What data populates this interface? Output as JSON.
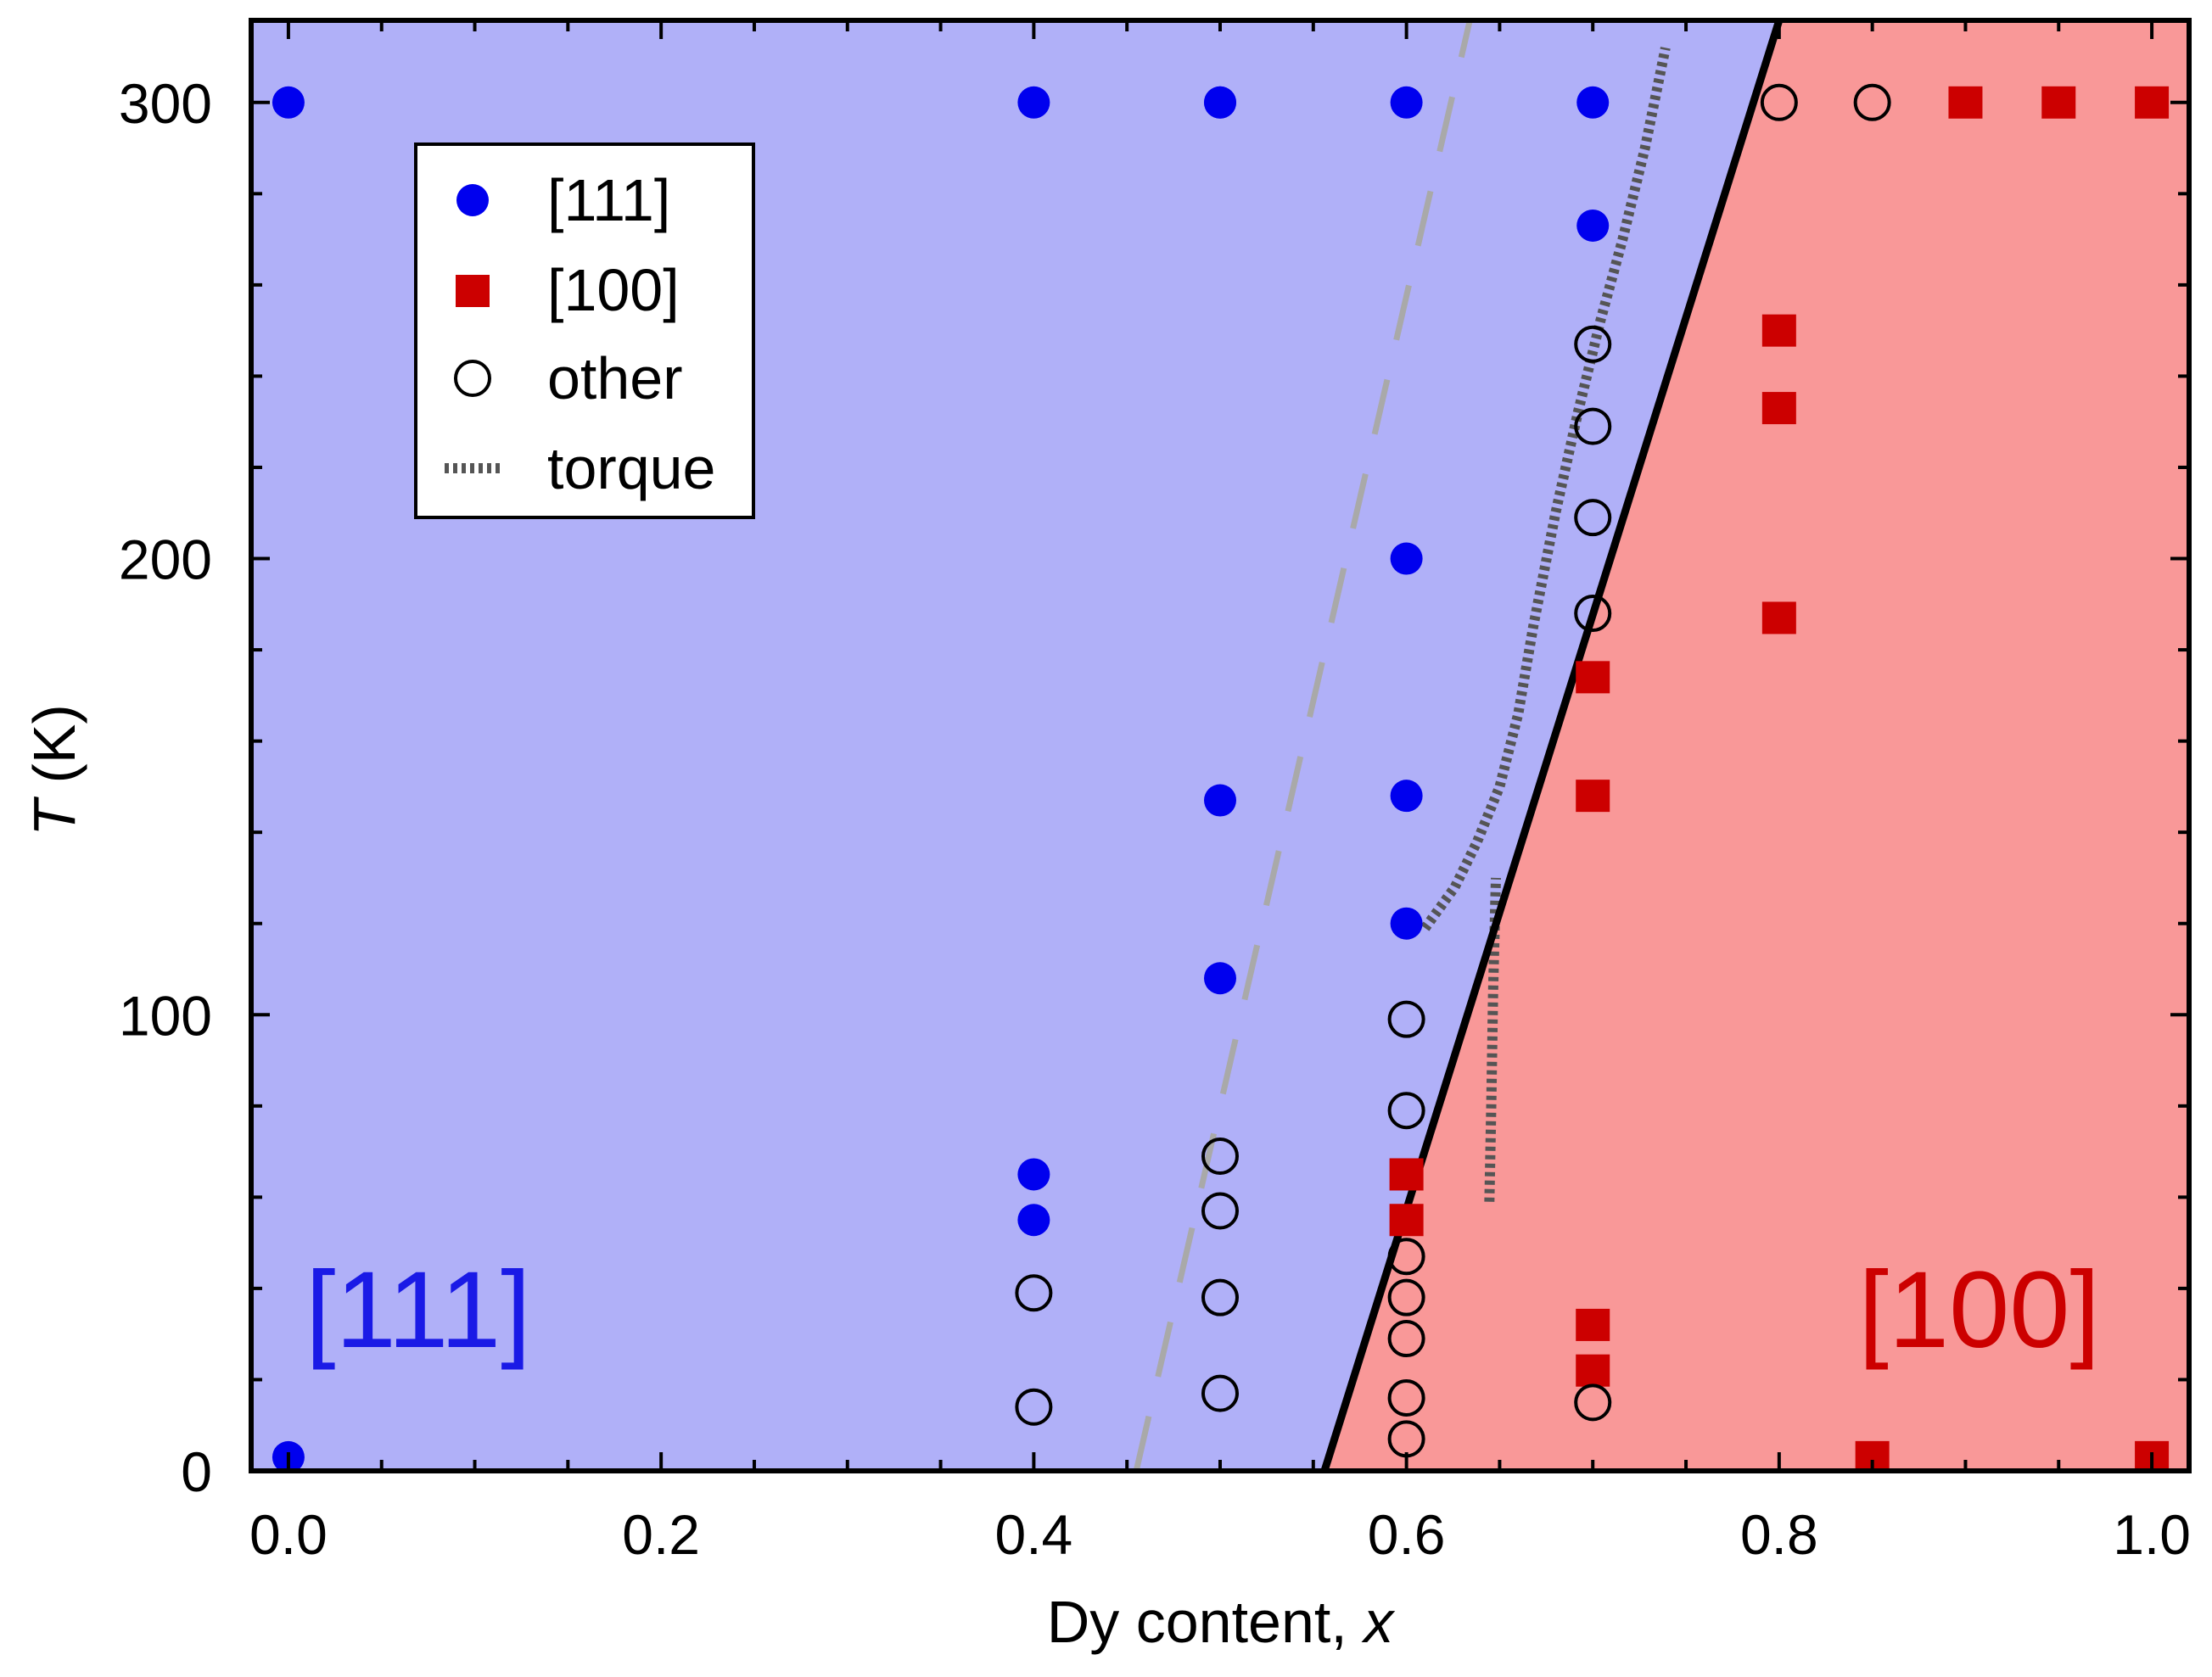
{
  "chart_data": {
    "type": "scatter",
    "title": "",
    "xlabel": "Dy content, ",
    "xlabel_italic": "x",
    "ylabel_italic": "T",
    "ylabel": " (K)",
    "xlim": [
      -0.02,
      1.02
    ],
    "ylim": [
      0,
      318
    ],
    "xticks": [
      "0.0",
      "0.2",
      "0.4",
      "0.6",
      "0.8",
      "1.0"
    ],
    "yticks": [
      "0",
      "100",
      "200",
      "300"
    ],
    "legend": [
      "[111]",
      "[100]",
      "other",
      "torque"
    ],
    "legend_position": "top-left",
    "regions": [
      {
        "label": "[111]",
        "color": "#b0b0f8",
        "text_color": "#1a1ae6"
      },
      {
        "label": "[100]",
        "color": "#f99898",
        "text_color": "#cc0000"
      }
    ],
    "boundary_line": {
      "name": "phase boundary",
      "x": [
        0.556,
        0.8
      ],
      "y": [
        0,
        318
      ]
    },
    "dashed_line": {
      "name": "dashed boundary",
      "x": [
        0.455,
        0.634
      ],
      "y": [
        0,
        318
      ]
    },
    "series": [
      {
        "name": "[111]",
        "marker": "filled-circle",
        "color": "#0000ee",
        "x": [
          0.0,
          0.0,
          0.4,
          0.4,
          0.4,
          0.5,
          0.5,
          0.5,
          0.5,
          0.6,
          0.6,
          0.6,
          0.6,
          0.7,
          0.7
        ],
        "y": [
          3,
          300,
          55,
          65,
          300,
          108,
          147,
          300,
          300,
          120,
          148,
          200,
          300,
          273,
          300
        ]
      },
      {
        "name": "[100]",
        "marker": "filled-square",
        "color": "#cc0000",
        "x": [
          0.6,
          0.6,
          0.7,
          0.7,
          0.7,
          0.7,
          0.8,
          0.8,
          0.8,
          0.85,
          0.9,
          0.95,
          1.0,
          1.0
        ],
        "y": [
          55,
          65,
          22,
          32,
          148,
          174,
          187,
          233,
          250,
          3,
          300,
          300,
          300,
          3
        ]
      },
      {
        "name": "other",
        "marker": "open-circle",
        "color": "#000000",
        "x": [
          0.4,
          0.4,
          0.5,
          0.5,
          0.5,
          0.5,
          0.6,
          0.6,
          0.6,
          0.6,
          0.6,
          0.6,
          0.6,
          0.7,
          0.7,
          0.7,
          0.7,
          0.7,
          0.8,
          0.85
        ],
        "y": [
          14,
          39,
          17,
          38,
          57,
          69,
          7,
          16,
          29,
          38,
          47,
          79,
          99,
          15,
          188,
          209,
          229,
          247,
          300,
          300
        ]
      },
      {
        "name": "torque",
        "marker": "dotted-line",
        "color": "#555555",
        "x": [
          0.61,
          0.626,
          0.638,
          0.65,
          0.66,
          0.668,
          0.68,
          0.692,
          0.704,
          0.716,
          0.728,
          0.739
        ],
        "y": [
          119,
          128,
          138,
          150,
          166,
          185,
          210,
          232,
          252,
          270,
          290,
          312
        ]
      },
      {
        "name": "torque-low",
        "marker": "dotted-line",
        "color": "#555555",
        "x": [
          0.6445,
          0.6455,
          0.6465,
          0.648
        ],
        "y": [
          59,
          80,
          105,
          130
        ]
      }
    ]
  }
}
